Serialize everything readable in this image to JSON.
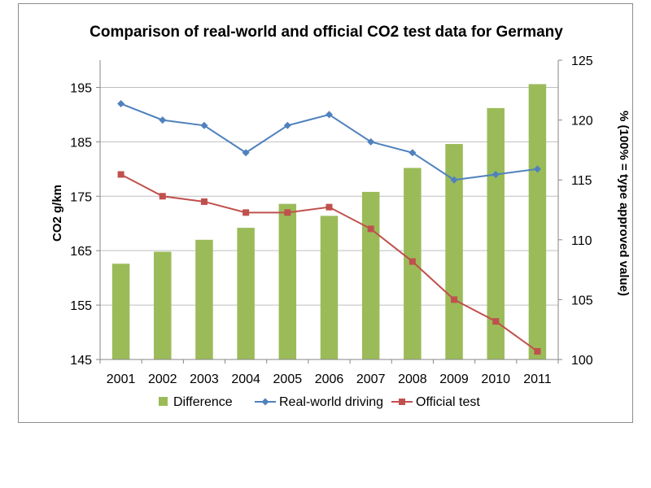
{
  "chart_data": {
    "type": "bar+line",
    "title": "Comparison of real-world and official CO2 test data for Germany",
    "categories": [
      "2001",
      "2002",
      "2003",
      "2004",
      "2005",
      "2006",
      "2007",
      "2008",
      "2009",
      "2010",
      "2011"
    ],
    "y_left": {
      "label": "CO2 g/km",
      "ylim": [
        145,
        200
      ],
      "ticks": [
        145,
        155,
        165,
        175,
        185,
        195
      ]
    },
    "y_right": {
      "label": "% (100% = type approved value)",
      "ylim": [
        100,
        125
      ],
      "ticks": [
        100,
        105,
        110,
        115,
        120,
        125
      ]
    },
    "series": [
      {
        "name": "Difference",
        "type": "bar",
        "axis": "right",
        "color": "#9bbb59",
        "values": [
          108,
          109,
          110,
          111,
          113,
          112,
          114,
          116,
          118,
          121,
          123
        ]
      },
      {
        "name": "Real-world driving",
        "type": "line",
        "axis": "left",
        "color": "#4f81bd",
        "marker": "diamond",
        "values": [
          192,
          189,
          188,
          183,
          188,
          190,
          185,
          183,
          178,
          179,
          180
        ]
      },
      {
        "name": "Official test",
        "type": "line",
        "axis": "left",
        "color": "#c0504d",
        "marker": "square",
        "values": [
          179,
          175,
          174,
          172,
          172,
          173,
          169,
          163,
          156,
          152,
          146.5
        ]
      }
    ],
    "grid": true,
    "legend_position": "bottom"
  }
}
